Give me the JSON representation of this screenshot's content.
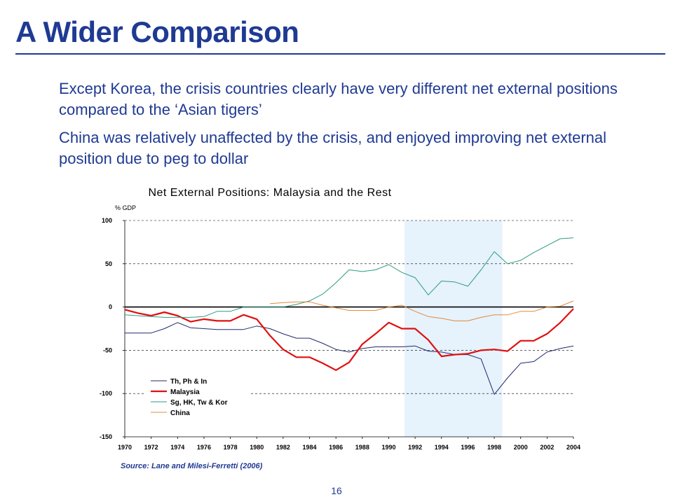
{
  "slide": {
    "title": "A Wider Comparison",
    "bullets": [
      "Except Korea, the crisis countries clearly have very different net external positions compared to the ‘Asian tigers’",
      "China was relatively unaffected by the crisis, and enjoyed improving net external position due to peg to dollar"
    ],
    "source": "Source: Lane and Milesi-Ferretti (2006)",
    "page_number": "16",
    "colors": {
      "title": "#1F3A93",
      "rule": "#1F3A93"
    }
  },
  "chart_data": {
    "type": "line",
    "title": "Net External Positions: Malaysia and the Rest",
    "units_label": "% GDP",
    "xlabel": "",
    "ylabel": "",
    "ylim": [
      -150,
      100
    ],
    "yticks": [
      100,
      50,
      0,
      -50,
      -100,
      -150
    ],
    "xlim": [
      1970,
      2004
    ],
    "xticks": [
      1970,
      1972,
      1974,
      1976,
      1978,
      1980,
      1982,
      1984,
      1986,
      1988,
      1990,
      1992,
      1994,
      1996,
      1998,
      2000,
      2002,
      2004
    ],
    "grid": "horizontal dashed",
    "legend_position": "bottom-left",
    "shaded_region": {
      "x0": 1991.2,
      "x1": 1998.6,
      "color": "#E6F2FC"
    },
    "series": [
      {
        "name": "Th, Ph & In",
        "color": "#1F2A6E",
        "x": [
          1970,
          1971,
          1972,
          1973,
          1974,
          1975,
          1976,
          1977,
          1978,
          1979,
          1980,
          1981,
          1982,
          1983,
          1984,
          1985,
          1986,
          1987,
          1988,
          1989,
          1990,
          1991,
          1992,
          1993,
          1994,
          1995,
          1996,
          1997,
          1998,
          1999,
          2000,
          2001,
          2002,
          2003,
          2004
        ],
        "values": [
          -30,
          -30,
          -30,
          -25,
          -18,
          -24,
          -25,
          -26,
          -26,
          -26,
          -22,
          -25,
          -31,
          -36,
          -36,
          -42,
          -49,
          -52,
          -48,
          -46,
          -46,
          -46,
          -45,
          -51,
          -52,
          -55,
          -55,
          -60,
          -101,
          -82,
          -65,
          -63,
          -52,
          -48,
          -45
        ]
      },
      {
        "name": "Malaysia",
        "color": "#E01010",
        "x": [
          1970,
          1971,
          1972,
          1973,
          1974,
          1975,
          1976,
          1977,
          1978,
          1979,
          1980,
          1981,
          1982,
          1983,
          1984,
          1985,
          1986,
          1987,
          1988,
          1989,
          1990,
          1991,
          1992,
          1993,
          1994,
          1995,
          1996,
          1997,
          1998,
          1999,
          2000,
          2001,
          2002,
          2003,
          2004
        ],
        "values": [
          -3,
          -7,
          -10,
          -6,
          -10,
          -17,
          -14,
          -16,
          -16,
          -9,
          -14,
          -33,
          -49,
          -58,
          -58,
          -65,
          -73,
          -64,
          -43,
          -31,
          -18,
          -25,
          -25,
          -38,
          -57,
          -55,
          -54,
          -50,
          -49,
          -51,
          -39,
          -39,
          -31,
          -18,
          -2
        ]
      },
      {
        "name": "Sg, HK, Tw & Kor",
        "color": "#2E9B83",
        "x": [
          1970,
          1971,
          1972,
          1973,
          1974,
          1975,
          1976,
          1977,
          1978,
          1979,
          1980,
          1981,
          1982,
          1983,
          1984,
          1985,
          1986,
          1987,
          1988,
          1989,
          1990,
          1991,
          1992,
          1993,
          1994,
          1995,
          1996,
          1997,
          1998,
          1999,
          2000,
          2001,
          2002,
          2003,
          2004
        ],
        "values": [
          -9,
          -10,
          -11,
          -12,
          -12,
          -12,
          -11,
          -5,
          -5,
          0,
          0,
          0,
          0,
          3,
          7,
          15,
          28,
          43,
          41,
          43,
          49,
          40,
          34,
          14,
          30,
          29,
          24,
          43,
          64,
          50,
          54,
          63,
          71,
          79,
          80
        ]
      },
      {
        "name": "China",
        "color": "#E08A3C",
        "x": [
          1981,
          1982,
          1983,
          1984,
          1985,
          1986,
          1987,
          1988,
          1989,
          1990,
          1991,
          1992,
          1993,
          1994,
          1995,
          1996,
          1997,
          1998,
          1999,
          2000,
          2001,
          2002,
          2003,
          2004
        ],
        "values": [
          4,
          5,
          6,
          6,
          2,
          -1,
          -4,
          -4,
          -4,
          0,
          2,
          -5,
          -11,
          -13,
          -16,
          -16,
          -12,
          -9,
          -9,
          -5,
          -5,
          0,
          1,
          7
        ]
      }
    ]
  }
}
